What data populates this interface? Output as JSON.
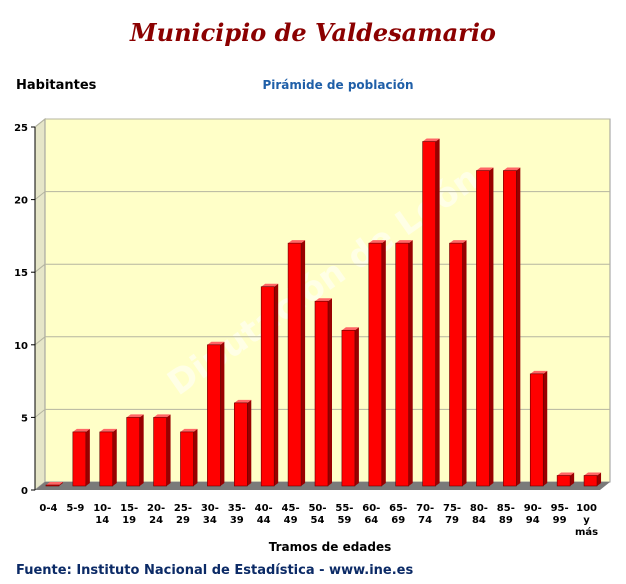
{
  "header": {
    "title": "Municipio de Valdesamario",
    "subtitle": "Pirámide de población",
    "ylabel": "Habitantes",
    "xlabel": "Tramos de edades",
    "source": "Fuente: Instituto Nacional de Estadística - www.ine.es",
    "watermark": "Diputación de León"
  },
  "colors": {
    "bar": "#ff0000",
    "bar_side": "#990000",
    "bar_top": "#ff6666",
    "plot_bg": "#ffffc8",
    "floor": "#7a7a7a",
    "grid": "#b5b5a0",
    "title": "#8b0000",
    "subtitle": "#1f5fa8",
    "source": "#0b2a66"
  },
  "chart_data": {
    "type": "bar",
    "categories": [
      [
        "0-4"
      ],
      [
        "5-9"
      ],
      [
        "10-",
        "14"
      ],
      [
        "15-",
        "19"
      ],
      [
        "20-",
        "24"
      ],
      [
        "25-",
        "29"
      ],
      [
        "30-",
        "34"
      ],
      [
        "35-",
        "39"
      ],
      [
        "40-",
        "44"
      ],
      [
        "45-",
        "49"
      ],
      [
        "50-",
        "54"
      ],
      [
        "55-",
        "59"
      ],
      [
        "60-",
        "64"
      ],
      [
        "65-",
        "69"
      ],
      [
        "70-",
        "74"
      ],
      [
        "75-",
        "79"
      ],
      [
        "80-",
        "84"
      ],
      [
        "85-",
        "89"
      ],
      [
        "90-",
        "94"
      ],
      [
        "95-",
        "99"
      ],
      [
        "100",
        "y",
        "más"
      ]
    ],
    "values": [
      0,
      4,
      4,
      5,
      5,
      4,
      10,
      6,
      14,
      17,
      13,
      11,
      17,
      17,
      24,
      17,
      22,
      22,
      8,
      1,
      1
    ],
    "ylim": [
      0,
      25
    ],
    "yticks": [
      0,
      5,
      10,
      15,
      20,
      25
    ],
    "grid": true,
    "legend": "none"
  }
}
